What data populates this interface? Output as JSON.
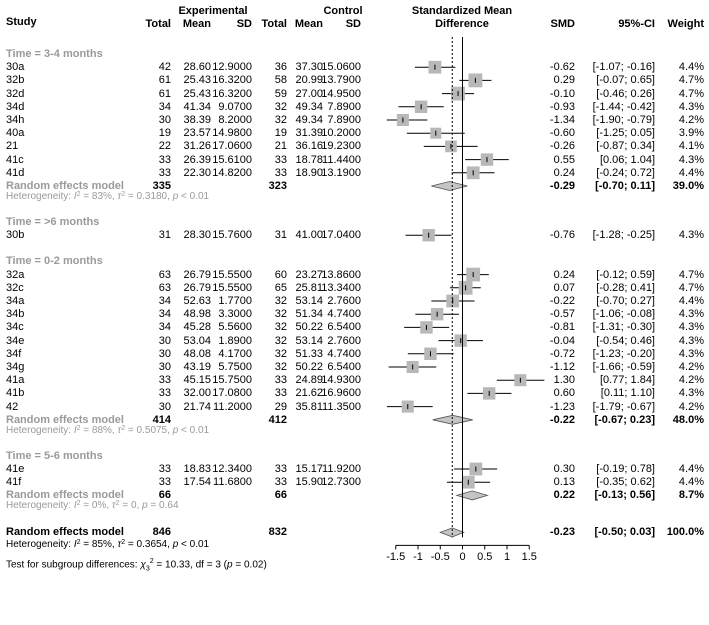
{
  "header": {
    "study": "Study",
    "experimental": "Experimental",
    "control": "Control",
    "smd_title_1": "Standardized Mean",
    "smd_title_2": "Difference",
    "total": "Total",
    "mean": "Mean",
    "sd": "SD",
    "smd": "SMD",
    "ci": "95%-CI",
    "weight": "Weight"
  },
  "chart_data": {
    "type": "forest",
    "xlim": [
      -1.5,
      1.5
    ],
    "x_ticks": [
      "-1.5",
      "-1",
      "-0.5",
      "0",
      "0.5",
      "1",
      "1.5"
    ],
    "x_tick_values": [
      -1.5,
      -1,
      -0.5,
      0,
      0.5,
      1,
      1.5
    ],
    "overall_effect": -0.23,
    "groups": [
      {
        "label": "Time = 3-4 months",
        "studies": [
          {
            "study": "30a",
            "e_total": "42",
            "e_mean": "28.60",
            "e_sd": "12.9000",
            "c_total": "36",
            "c_mean": "37.30",
            "c_sd": "15.0600",
            "smd": -0.62,
            "lo": -1.07,
            "hi": -0.16,
            "smd_text": "-0.62",
            "ci_text": "[-1.07; -0.16]",
            "weight": "4.4%"
          },
          {
            "study": "32b",
            "e_total": "61",
            "e_mean": "25.43",
            "e_sd": "16.3200",
            "c_total": "58",
            "c_mean": "20.99",
            "c_sd": "13.7900",
            "smd": 0.29,
            "lo": -0.07,
            "hi": 0.65,
            "smd_text": "0.29",
            "ci_text": "[-0.07; 0.65]",
            "weight": "4.7%"
          },
          {
            "study": "32d",
            "e_total": "61",
            "e_mean": "25.43",
            "e_sd": "16.3200",
            "c_total": "59",
            "c_mean": "27.00",
            "c_sd": "14.9500",
            "smd": -0.1,
            "lo": -0.46,
            "hi": 0.26,
            "smd_text": "-0.10",
            "ci_text": "[-0.46; 0.26]",
            "weight": "4.7%"
          },
          {
            "study": "34d",
            "e_total": "34",
            "e_mean": "41.34",
            "e_sd": "9.0700",
            "c_total": "32",
            "c_mean": "49.34",
            "c_sd": "7.8900",
            "smd": -0.93,
            "lo": -1.44,
            "hi": -0.42,
            "smd_text": "-0.93",
            "ci_text": "[-1.44; -0.42]",
            "weight": "4.3%"
          },
          {
            "study": "34h",
            "e_total": "30",
            "e_mean": "38.39",
            "e_sd": "8.2000",
            "c_total": "32",
            "c_mean": "49.34",
            "c_sd": "7.8900",
            "smd": -1.34,
            "lo": -1.9,
            "hi": -0.79,
            "smd_text": "-1.34",
            "ci_text": "[-1.90; -0.79]",
            "weight": "4.2%"
          },
          {
            "study": "40a",
            "e_total": "19",
            "e_mean": "23.57",
            "e_sd": "14.9800",
            "c_total": "19",
            "c_mean": "31.39",
            "c_sd": "10.2000",
            "smd": -0.6,
            "lo": -1.25,
            "hi": 0.05,
            "smd_text": "-0.60",
            "ci_text": "[-1.25; 0.05]",
            "weight": "3.9%"
          },
          {
            "study": "21",
            "e_total": "22",
            "e_mean": "31.26",
            "e_sd": "17.0600",
            "c_total": "21",
            "c_mean": "36.16",
            "c_sd": "19.2300",
            "smd": -0.26,
            "lo": -0.87,
            "hi": 0.34,
            "smd_text": "-0.26",
            "ci_text": "[-0.87; 0.34]",
            "weight": "4.1%"
          },
          {
            "study": "41c",
            "e_total": "33",
            "e_mean": "26.39",
            "e_sd": "15.6100",
            "c_total": "33",
            "c_mean": "18.78",
            "c_sd": "11.4400",
            "smd": 0.55,
            "lo": 0.06,
            "hi": 1.04,
            "smd_text": "0.55",
            "ci_text": "[0.06; 1.04]",
            "weight": "4.3%"
          },
          {
            "study": "41d",
            "e_total": "33",
            "e_mean": "22.30",
            "e_sd": "14.8200",
            "c_total": "33",
            "c_mean": "18.90",
            "c_sd": "13.1900",
            "smd": 0.24,
            "lo": -0.24,
            "hi": 0.72,
            "smd_text": "0.24",
            "ci_text": "[-0.24; 0.72]",
            "weight": "4.4%"
          }
        ],
        "summary": {
          "label": "Random effects model",
          "e_total": "335",
          "c_total": "323",
          "smd": -0.29,
          "lo": -0.7,
          "hi": 0.11,
          "smd_text": "-0.29",
          "ci_text": "[-0.70; 0.11]",
          "weight": "39.0%"
        },
        "heterogeneity": {
          "prefix": "Heterogeneity: ",
          "i2_sym": "I",
          "i2_val": " = 83%, ",
          "tau_sym": "τ",
          "tau_val": " = 0.3180, ",
          "p_sym": "p",
          "p_val": " < 0.01"
        }
      },
      {
        "label": "Time = >6 months",
        "studies": [
          {
            "study": "30b",
            "e_total": "31",
            "e_mean": "28.30",
            "e_sd": "15.7600",
            "c_total": "31",
            "c_mean": "41.00",
            "c_sd": "17.0400",
            "smd": -0.76,
            "lo": -1.28,
            "hi": -0.25,
            "smd_text": "-0.76",
            "ci_text": "[-1.28; -0.25]",
            "weight": "4.3%"
          }
        ]
      },
      {
        "label": "Time = 0-2 months",
        "studies": [
          {
            "study": "32a",
            "e_total": "63",
            "e_mean": "26.79",
            "e_sd": "15.5500",
            "c_total": "60",
            "c_mean": "23.27",
            "c_sd": "13.8600",
            "smd": 0.24,
            "lo": -0.12,
            "hi": 0.59,
            "smd_text": "0.24",
            "ci_text": "[-0.12; 0.59]",
            "weight": "4.7%"
          },
          {
            "study": "32c",
            "e_total": "63",
            "e_mean": "26.79",
            "e_sd": "15.5500",
            "c_total": "65",
            "c_mean": "25.81",
            "c_sd": "13.3400",
            "smd": 0.07,
            "lo": -0.28,
            "hi": 0.41,
            "smd_text": "0.07",
            "ci_text": "[-0.28; 0.41]",
            "weight": "4.7%"
          },
          {
            "study": "34a",
            "e_total": "34",
            "e_mean": "52.63",
            "e_sd": "1.7700",
            "c_total": "32",
            "c_mean": "53.14",
            "c_sd": "2.7600",
            "smd": -0.22,
            "lo": -0.7,
            "hi": 0.27,
            "smd_text": "-0.22",
            "ci_text": "[-0.70; 0.27]",
            "weight": "4.4%"
          },
          {
            "study": "34b",
            "e_total": "34",
            "e_mean": "48.98",
            "e_sd": "3.3000",
            "c_total": "32",
            "c_mean": "51.34",
            "c_sd": "4.7400",
            "smd": -0.57,
            "lo": -1.06,
            "hi": -0.08,
            "smd_text": "-0.57",
            "ci_text": "[-1.06; -0.08]",
            "weight": "4.3%"
          },
          {
            "study": "34c",
            "e_total": "34",
            "e_mean": "45.28",
            "e_sd": "5.5600",
            "c_total": "32",
            "c_mean": "50.22",
            "c_sd": "6.5400",
            "smd": -0.81,
            "lo": -1.31,
            "hi": -0.3,
            "smd_text": "-0.81",
            "ci_text": "[-1.31; -0.30]",
            "weight": "4.3%"
          },
          {
            "study": "34e",
            "e_total": "30",
            "e_mean": "53.04",
            "e_sd": "1.8900",
            "c_total": "32",
            "c_mean": "53.14",
            "c_sd": "2.7600",
            "smd": -0.04,
            "lo": -0.54,
            "hi": 0.46,
            "smd_text": "-0.04",
            "ci_text": "[-0.54; 0.46]",
            "weight": "4.3%"
          },
          {
            "study": "34f",
            "e_total": "30",
            "e_mean": "48.08",
            "e_sd": "4.1700",
            "c_total": "32",
            "c_mean": "51.33",
            "c_sd": "4.7400",
            "smd": -0.72,
            "lo": -1.23,
            "hi": -0.2,
            "smd_text": "-0.72",
            "ci_text": "[-1.23; -0.20]",
            "weight": "4.3%"
          },
          {
            "study": "34g",
            "e_total": "30",
            "e_mean": "43.19",
            "e_sd": "5.7500",
            "c_total": "32",
            "c_mean": "50.22",
            "c_sd": "6.5400",
            "smd": -1.12,
            "lo": -1.66,
            "hi": -0.59,
            "smd_text": "-1.12",
            "ci_text": "[-1.66; -0.59]",
            "weight": "4.2%"
          },
          {
            "study": "41a",
            "e_total": "33",
            "e_mean": "45.15",
            "e_sd": "15.7500",
            "c_total": "33",
            "c_mean": "24.89",
            "c_sd": "14.9300",
            "smd": 1.3,
            "lo": 0.77,
            "hi": 1.84,
            "smd_text": "1.30",
            "ci_text": "[0.77; 1.84]",
            "weight": "4.2%"
          },
          {
            "study": "41b",
            "e_total": "33",
            "e_mean": "32.00",
            "e_sd": "17.0800",
            "c_total": "33",
            "c_mean": "21.62",
            "c_sd": "16.9600",
            "smd": 0.6,
            "lo": 0.11,
            "hi": 1.1,
            "smd_text": "0.60",
            "ci_text": "[0.11; 1.10]",
            "weight": "4.3%"
          },
          {
            "study": "42",
            "e_total": "30",
            "e_mean": "21.74",
            "e_sd": "11.2000",
            "c_total": "29",
            "c_mean": "35.81",
            "c_sd": "11.3500",
            "smd": -1.23,
            "lo": -1.79,
            "hi": -0.67,
            "smd_text": "-1.23",
            "ci_text": "[-1.79; -0.67]",
            "weight": "4.2%"
          }
        ],
        "summary": {
          "label": "Random effects model",
          "e_total": "414",
          "c_total": "412",
          "smd": -0.22,
          "lo": -0.67,
          "hi": 0.23,
          "smd_text": "-0.22",
          "ci_text": "[-0.67; 0.23]",
          "weight": "48.0%"
        },
        "heterogeneity": {
          "prefix": "Heterogeneity: ",
          "i2_sym": "I",
          "i2_val": " = 88%, ",
          "tau_sym": "τ",
          "tau_val": " = 0.5075, ",
          "p_sym": "p",
          "p_val": " < 0.01"
        }
      },
      {
        "label": "Time = 5-6 months",
        "studies": [
          {
            "study": "41e",
            "e_total": "33",
            "e_mean": "18.83",
            "e_sd": "12.3400",
            "c_total": "33",
            "c_mean": "15.17",
            "c_sd": "11.9200",
            "smd": 0.3,
            "lo": -0.19,
            "hi": 0.78,
            "smd_text": "0.30",
            "ci_text": "[-0.19; 0.78]",
            "weight": "4.4%"
          },
          {
            "study": "41f",
            "e_total": "33",
            "e_mean": "17.54",
            "e_sd": "11.6800",
            "c_total": "33",
            "c_mean": "15.90",
            "c_sd": "12.7300",
            "smd": 0.13,
            "lo": -0.35,
            "hi": 0.62,
            "smd_text": "0.13",
            "ci_text": "[-0.35; 0.62]",
            "weight": "4.4%"
          }
        ],
        "summary": {
          "label": "Random effects model",
          "e_total": "66",
          "c_total": "66",
          "smd": 0.22,
          "lo": -0.13,
          "hi": 0.56,
          "smd_text": "0.22",
          "ci_text": "[-0.13; 0.56]",
          "weight": "8.7%"
        },
        "heterogeneity": {
          "prefix": "Heterogeneity: ",
          "i2_sym": "I",
          "i2_val": " = 0%, ",
          "tau_sym": "τ",
          "tau_val": " = 0, ",
          "p_sym": "p",
          "p_val": " = 0.64"
        }
      }
    ],
    "overall": {
      "label": "Random effects model",
      "e_total": "846",
      "c_total": "832",
      "smd": -0.23,
      "lo": -0.5,
      "hi": 0.03,
      "smd_text": "-0.23",
      "ci_text": "[-0.50; 0.03]",
      "weight": "100.0%",
      "heterogeneity": {
        "prefix": "Heterogeneity: ",
        "i2_sym": "I",
        "i2_val": " = 85%, ",
        "tau_sym": "τ",
        "tau_val": " = 0.3654, ",
        "p_sym": "p",
        "p_val": " < 0.01"
      },
      "subgroup_test": {
        "prefix": "Test for subgroup differences: ",
        "chi_sym": "χ",
        "chi_sub": "3",
        "chi_val": " = 10.33, df = 3 (",
        "p_sym": "p",
        "p_val": " = 0.02)"
      }
    }
  },
  "colors": {
    "square": "#b8b8b8",
    "diamond": "#c4c4c4",
    "grey_text": "#9a9a9a",
    "line": "#000000"
  }
}
